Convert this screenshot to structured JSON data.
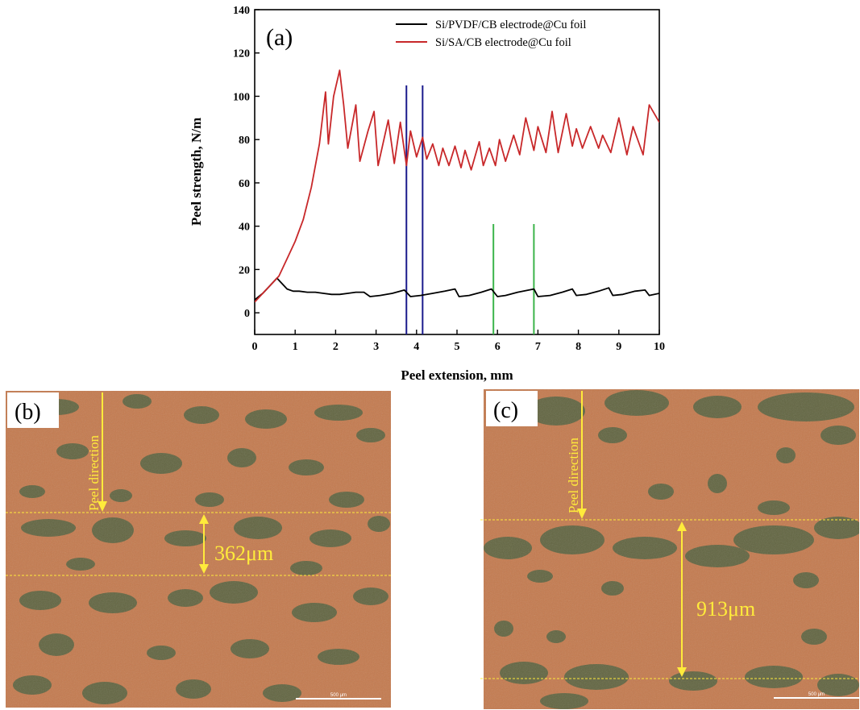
{
  "chart_data": {
    "type": "line",
    "panel_label": "(a)",
    "xlabel": "Peel extension, mm",
    "ylabel": "Peel strength, N/m",
    "xlim": [
      0,
      10
    ],
    "ylim": [
      -10,
      140
    ],
    "x_ticks": [
      0,
      1,
      2,
      3,
      4,
      5,
      6,
      7,
      8,
      9,
      10
    ],
    "y_ticks": [
      0,
      20,
      40,
      60,
      80,
      100,
      120,
      140
    ],
    "grid": false,
    "legend_position": "top-right",
    "series": [
      {
        "name": "Si/PVDF/CB electrode@Cu foil",
        "color": "#000000",
        "x": [
          0,
          0.2,
          0.4,
          0.55,
          0.65,
          0.8,
          0.95,
          1.1,
          1.3,
          1.5,
          1.7,
          1.9,
          2.1,
          2.3,
          2.5,
          2.7,
          2.85,
          3.1,
          3.4,
          3.7,
          3.85,
          4.1,
          4.4,
          4.7,
          4.95,
          5.05,
          5.3,
          5.6,
          5.85,
          6.0,
          6.2,
          6.5,
          6.9,
          7.0,
          7.3,
          7.6,
          7.85,
          7.95,
          8.2,
          8.5,
          8.75,
          8.85,
          9.1,
          9.4,
          9.65,
          9.75,
          10.0
        ],
        "y": [
          6,
          9,
          13,
          16,
          14,
          11,
          10,
          10,
          9.5,
          9.5,
          9,
          8.5,
          8.5,
          9,
          9.5,
          9.5,
          7.5,
          8,
          9,
          10.5,
          7.5,
          8,
          9,
          10,
          11,
          7.5,
          8,
          9.5,
          11,
          7.5,
          8,
          9.5,
          11,
          7.5,
          8,
          9.5,
          11,
          8,
          8.5,
          10,
          11.5,
          8,
          8.5,
          10,
          10.5,
          8,
          9
        ]
      },
      {
        "name": "Si/SA/CB electrode@Cu foil",
        "color": "#c8282a",
        "x": [
          0,
          0.2,
          0.4,
          0.6,
          0.8,
          1.0,
          1.2,
          1.4,
          1.6,
          1.75,
          1.82,
          1.95,
          2.1,
          2.2,
          2.3,
          2.5,
          2.6,
          2.8,
          2.95,
          3.05,
          3.3,
          3.45,
          3.6,
          3.75,
          3.85,
          4.0,
          4.15,
          4.25,
          4.4,
          4.55,
          4.65,
          4.8,
          4.95,
          5.1,
          5.2,
          5.35,
          5.55,
          5.65,
          5.8,
          5.95,
          6.05,
          6.2,
          6.4,
          6.55,
          6.7,
          6.9,
          7.0,
          7.2,
          7.35,
          7.5,
          7.7,
          7.85,
          7.95,
          8.1,
          8.3,
          8.5,
          8.6,
          8.8,
          9.0,
          9.2,
          9.35,
          9.6,
          9.75,
          10.0
        ],
        "y": [
          5,
          9,
          13,
          17,
          25,
          33,
          43,
          58,
          78,
          102,
          78,
          100,
          112,
          96,
          76,
          96,
          70,
          84,
          93,
          68,
          89,
          69,
          88,
          68,
          84,
          72,
          81,
          71,
          78,
          68,
          76,
          68,
          77,
          67,
          75,
          66,
          79,
          68,
          76,
          68,
          80,
          70,
          82,
          73,
          90,
          75,
          86,
          74,
          93,
          74,
          92,
          77,
          85,
          76,
          86,
          76,
          82,
          74,
          90,
          73,
          86,
          73,
          96,
          88
        ]
      }
    ],
    "markers": [
      {
        "x": 3.75,
        "y_top": 105,
        "color": "#1a1a8c"
      },
      {
        "x": 4.15,
        "y_top": 105,
        "color": "#1a1a8c"
      },
      {
        "x": 5.9,
        "y_top": 41,
        "color": "#3cb44b"
      },
      {
        "x": 6.9,
        "y_top": 41,
        "color": "#3cb44b"
      }
    ]
  },
  "micrographs": [
    {
      "panel_label": "(b)",
      "direction_label": "Peel direction",
      "measurement": "362μm",
      "scalebar_label": "500 μm"
    },
    {
      "panel_label": "(c)",
      "direction_label": "Peel direction",
      "measurement": "913μm",
      "scalebar_label": "500 μm"
    }
  ],
  "colors": {
    "copper": "#c47a4e",
    "residue": "#5a6440",
    "annotation": "#ffeb3b"
  }
}
